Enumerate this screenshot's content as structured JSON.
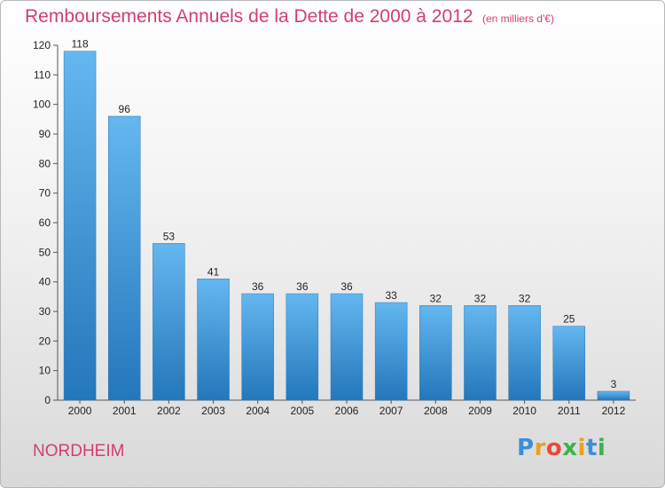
{
  "header": {
    "title": "Remboursements Annuels de la Dette de 2000 à 2012",
    "unit": "(en milliers d'€)"
  },
  "footer": {
    "town": "NORDHEIM",
    "logo_letters": [
      "P",
      "r",
      "o",
      "x",
      "i",
      "t",
      "i"
    ],
    "logo_colors": [
      "#3a8fd6",
      "#e8a21e",
      "#e84a3c",
      "#3ab44a",
      "#e8a21e",
      "#3a8fd6",
      "#3ab44a"
    ]
  },
  "colors": {
    "title": "#d43e6c",
    "bar_top": "#64b7ef",
    "bar_bottom": "#2377bb"
  },
  "chart_data": {
    "type": "bar",
    "title": "Remboursements Annuels de la Dette de 2000 à 2012",
    "xlabel": "",
    "ylabel": "",
    "categories": [
      "2000",
      "2001",
      "2002",
      "2003",
      "2004",
      "2005",
      "2006",
      "2007",
      "2008",
      "2009",
      "2010",
      "2011",
      "2012"
    ],
    "values": [
      118,
      96,
      53,
      41,
      36,
      36,
      36,
      33,
      32,
      32,
      32,
      25,
      3
    ],
    "ylim": [
      0,
      120
    ],
    "yticks": [
      0,
      10,
      20,
      30,
      40,
      50,
      60,
      70,
      80,
      90,
      100,
      110,
      120
    ],
    "grid": false,
    "legend": "none"
  }
}
